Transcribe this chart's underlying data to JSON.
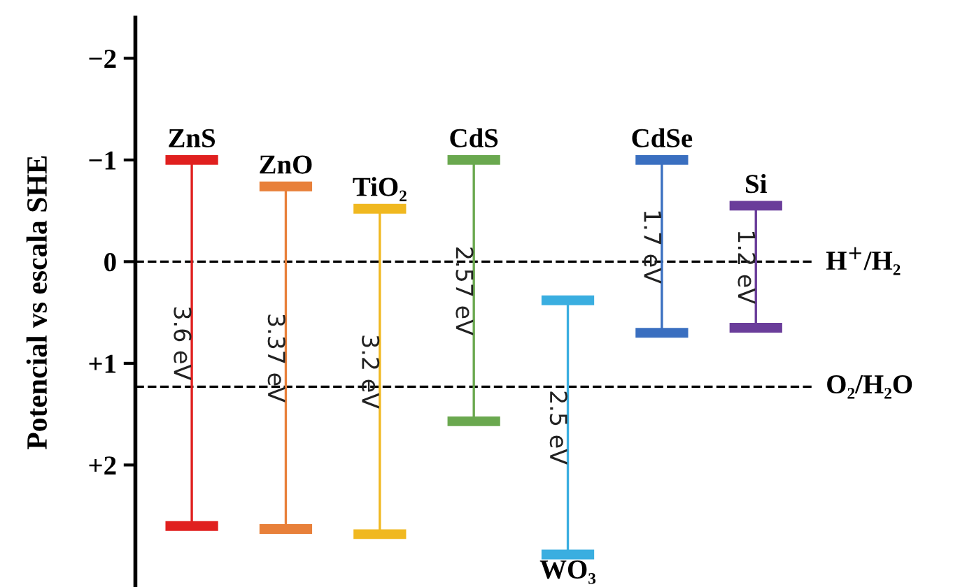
{
  "chart_data": {
    "type": "bar",
    "ylabel": "Potencial vs escala SHE",
    "categories": [
      "ZnS",
      "ZnO",
      "TiO₂",
      "CdS",
      "WO₃",
      "CdSe",
      "Si"
    ],
    "base": [
      -1.0,
      -0.74,
      -0.52,
      -1.0,
      0.38,
      -1.0,
      -0.55
    ],
    "values": [
      3.6,
      3.37,
      3.2,
      2.57,
      2.5,
      1.7,
      1.2
    ],
    "value_labels": [
      "3.6 eV",
      "3.37 eV",
      "3.2 eV",
      "2.57 eV",
      "2.5 eV",
      "1.7 eV",
      "1.2 eV"
    ],
    "colors": [
      "#e0201f",
      "#e8803a",
      "#f0b820",
      "#6aa84f",
      "#3aaee0",
      "#3a6fc0",
      "#6a3d9a"
    ],
    "ylim": [
      3.2,
      -2.4
    ],
    "yticks": [
      {
        "value": -2,
        "label": "−2"
      },
      {
        "value": -1,
        "label": "−1"
      },
      {
        "value": 0,
        "label": "0"
      },
      {
        "value": 1,
        "label": "+1"
      },
      {
        "value": 2,
        "label": "+2"
      }
    ],
    "tick_labels": "y",
    "grid": false,
    "ref_lines": [
      {
        "axis": "y",
        "value": 0,
        "label": "H$^{+}$/H₂",
        "color": "#000000",
        "line_style": "dashed"
      },
      {
        "axis": "y",
        "value": 1.23,
        "label": "O₂/H₂O",
        "color": "#000000",
        "line_style": "dashed"
      }
    ]
  }
}
